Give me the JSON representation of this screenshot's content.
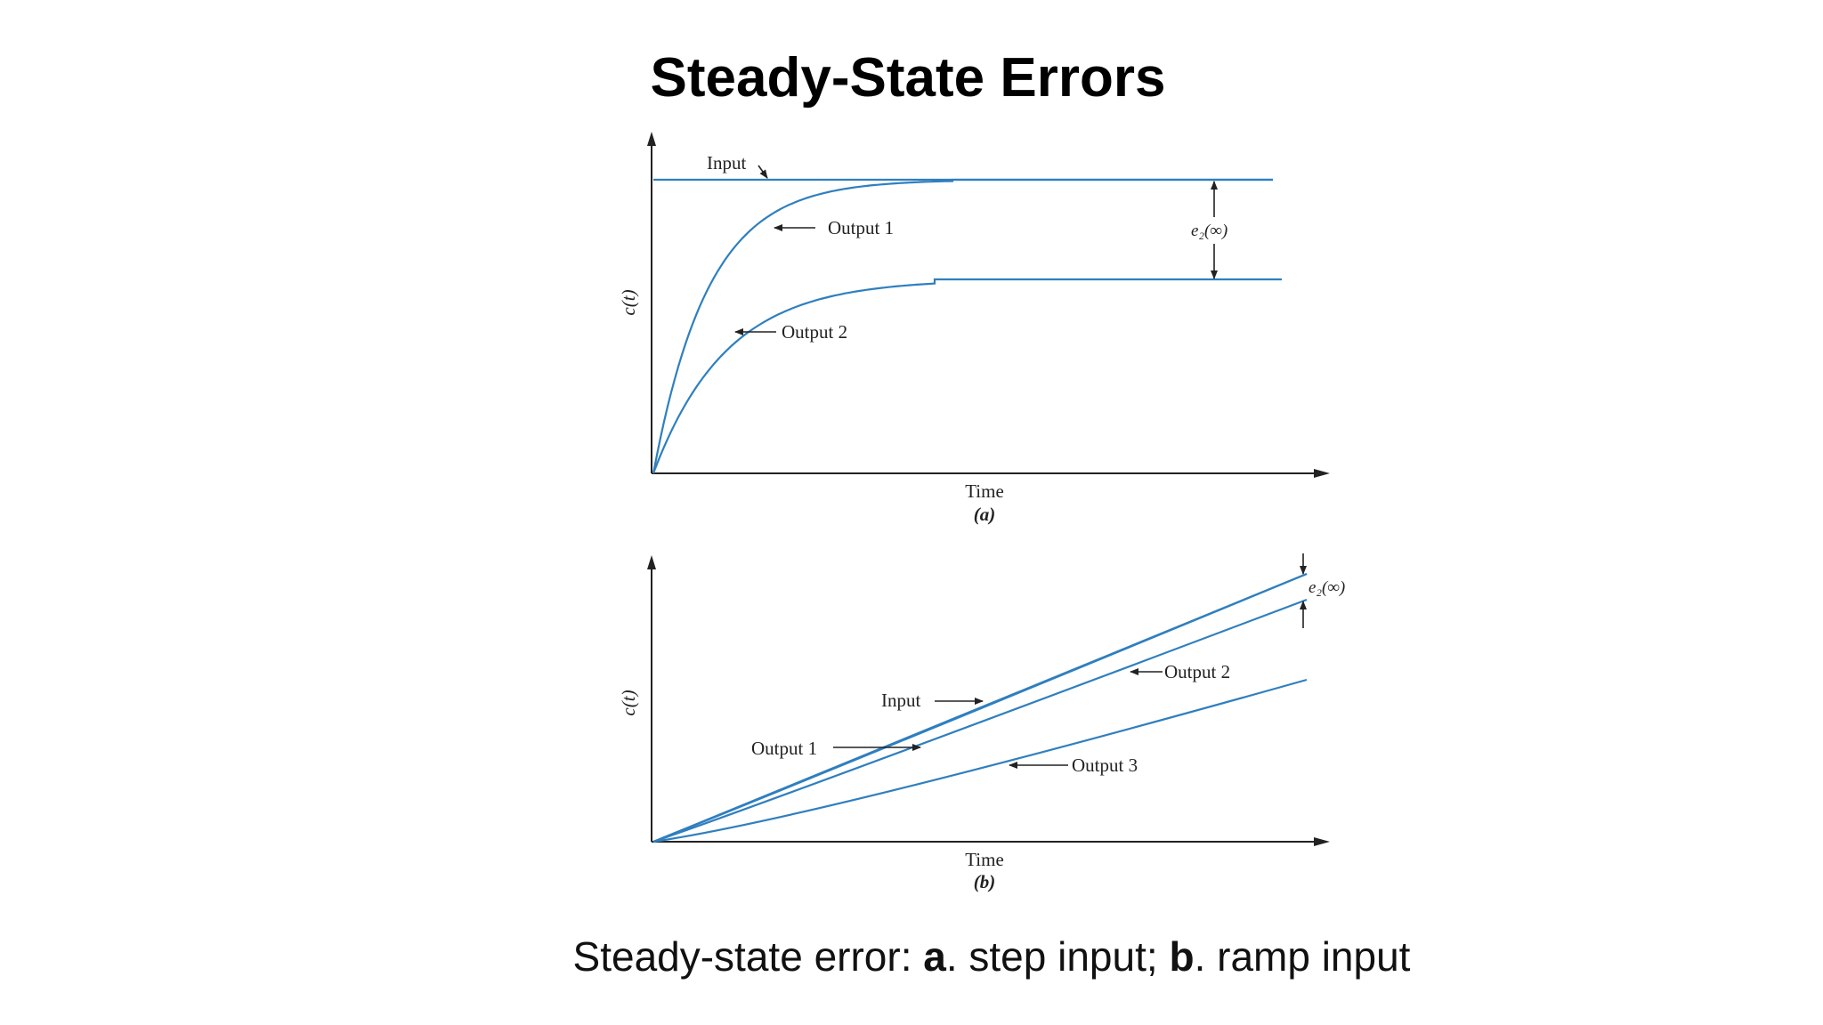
{
  "slide": {
    "title": "Steady-State Errors",
    "caption": {
      "prefix": "Steady-state error: ",
      "a_letter": "a",
      "a_text": ". step input; ",
      "b_letter": "b",
      "b_text": ". ramp input"
    }
  },
  "colors": {
    "curve": "#2f7fbf",
    "axis": "#222222"
  },
  "diagram_a": {
    "sublabel": "(a)",
    "xlabel": "Time",
    "ylabel": "c(t)",
    "labels": {
      "input": "Input",
      "output1": "Output 1",
      "output2": "Output 2",
      "error": "e₂(∞)"
    }
  },
  "diagram_b": {
    "sublabel": "(b)",
    "xlabel": "Time",
    "ylabel": "c(t)",
    "labels": {
      "input": "Input",
      "output1": "Output 1",
      "output2": "Output 2",
      "output3": "Output 3",
      "error": "e₂(∞)"
    }
  }
}
